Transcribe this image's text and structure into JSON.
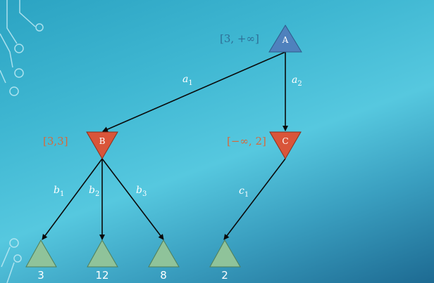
{
  "nodes": {
    "A": {
      "label": "A",
      "interval": "[3, +∞]",
      "type": "max",
      "color": "#4f81bd"
    },
    "B": {
      "label": "B",
      "interval": "[3,3]",
      "type": "min",
      "color": "#d9553a"
    },
    "C": {
      "label": "C",
      "interval": "[−∞, 2]",
      "type": "min",
      "color": "#d9553a"
    }
  },
  "edges": {
    "a1": {
      "var": "a",
      "sub": "1"
    },
    "a2": {
      "var": "a",
      "sub": "2"
    },
    "b1": {
      "var": "b",
      "sub": "1"
    },
    "b2": {
      "var": "b",
      "sub": "2"
    },
    "b3": {
      "var": "b",
      "sub": "3"
    },
    "c1": {
      "var": "c",
      "sub": "1"
    }
  },
  "leaves": [
    {
      "value": "3"
    },
    {
      "value": "12"
    },
    {
      "value": "8"
    },
    {
      "value": "2"
    }
  ],
  "colors": {
    "leaf_fill": "#8fc39a",
    "edge": "#0a0a0a",
    "interval_blue": "#2e6e96",
    "interval_orange": "#d6693c"
  }
}
